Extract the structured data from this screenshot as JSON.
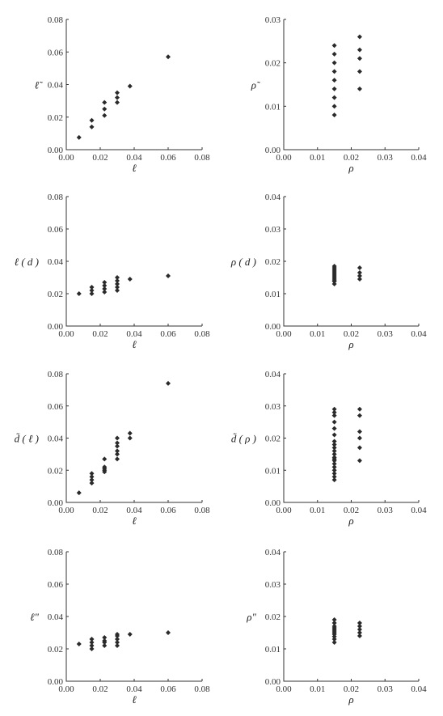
{
  "chart_data": [
    {
      "type": "scatter",
      "ylabel": "ℓ̃",
      "xlabel": "ℓ",
      "xlim": [
        0,
        0.08
      ],
      "ylim": [
        0,
        0.08
      ],
      "xticks": [
        "0.00",
        "0.02",
        "0.04",
        "0.06",
        "0.08"
      ],
      "yticks": [
        "0.00",
        "0.02",
        "0.04",
        "0.06",
        "0.08"
      ],
      "x": [
        0.0075,
        0.015,
        0.015,
        0.0225,
        0.0225,
        0.0225,
        0.03,
        0.03,
        0.03,
        0.0375,
        0.06
      ],
      "y": [
        0.0075,
        0.014,
        0.018,
        0.021,
        0.025,
        0.029,
        0.029,
        0.032,
        0.035,
        0.039,
        0.057
      ]
    },
    {
      "type": "scatter",
      "ylabel": "ρ̃",
      "xlabel": "ρ",
      "xlim": [
        0,
        0.04
      ],
      "ylim": [
        0,
        0.03
      ],
      "xticks": [
        "0.00",
        "0.01",
        "0.02",
        "0.03",
        "0.04"
      ],
      "yticks": [
        "0.00",
        "0.01",
        "0.02",
        "0.03"
      ],
      "x": [
        0.015,
        0.015,
        0.015,
        0.015,
        0.015,
        0.015,
        0.015,
        0.015,
        0.015,
        0.0225,
        0.0225,
        0.0225,
        0.0225,
        0.0225
      ],
      "y": [
        0.008,
        0.01,
        0.012,
        0.014,
        0.016,
        0.018,
        0.02,
        0.022,
        0.024,
        0.014,
        0.018,
        0.021,
        0.023,
        0.026
      ]
    },
    {
      "type": "scatter",
      "ylabel": "ℓ ( d )",
      "xlabel": "ℓ",
      "xlim": [
        0,
        0.08
      ],
      "ylim": [
        0,
        0.08
      ],
      "xticks": [
        "0.00",
        "0.02",
        "0.04",
        "0.06",
        "0.08"
      ],
      "yticks": [
        "0.00",
        "0.02",
        "0.04",
        "0.06",
        "0.08"
      ],
      "x": [
        0.0075,
        0.015,
        0.015,
        0.015,
        0.0225,
        0.0225,
        0.0225,
        0.0225,
        0.03,
        0.03,
        0.03,
        0.03,
        0.03,
        0.0375,
        0.06
      ],
      "y": [
        0.02,
        0.02,
        0.022,
        0.024,
        0.021,
        0.023,
        0.025,
        0.027,
        0.022,
        0.024,
        0.026,
        0.028,
        0.03,
        0.029,
        0.031
      ]
    },
    {
      "type": "scatter",
      "ylabel": "ρ ( d )",
      "xlabel": "ρ",
      "xlim": [
        0,
        0.04
      ],
      "ylim": [
        0,
        0.04
      ],
      "xticks": [
        "0.00",
        "0.01",
        "0.02",
        "0.03",
        "0.04"
      ],
      "yticks": [
        "0.00",
        "0.01",
        "0.02",
        "0.03",
        "0.04"
      ],
      "x": [
        0.015,
        0.015,
        0.015,
        0.015,
        0.015,
        0.015,
        0.015,
        0.015,
        0.015,
        0.015,
        0.015,
        0.015,
        0.0225,
        0.0225,
        0.0225,
        0.0225
      ],
      "y": [
        0.013,
        0.0138,
        0.0145,
        0.015,
        0.0155,
        0.016,
        0.0165,
        0.017,
        0.0175,
        0.018,
        0.0185,
        0.014,
        0.0145,
        0.0155,
        0.0165,
        0.018
      ]
    },
    {
      "type": "scatter",
      "ylabel": "d̃ ( ℓ )",
      "xlabel": "ℓ",
      "xlim": [
        0,
        0.08
      ],
      "ylim": [
        0,
        0.08
      ],
      "xticks": [
        "0.00",
        "0.02",
        "0.04",
        "0.06",
        "0.08"
      ],
      "yticks": [
        "0.00",
        "0.02",
        "0.04",
        "0.06",
        "0.08"
      ],
      "x": [
        0.0075,
        0.015,
        0.015,
        0.015,
        0.015,
        0.0225,
        0.0225,
        0.0225,
        0.0225,
        0.0225,
        0.03,
        0.03,
        0.03,
        0.03,
        0.03,
        0.03,
        0.0375,
        0.0375,
        0.06
      ],
      "y": [
        0.006,
        0.012,
        0.014,
        0.016,
        0.018,
        0.019,
        0.02,
        0.021,
        0.022,
        0.027,
        0.027,
        0.03,
        0.032,
        0.035,
        0.037,
        0.04,
        0.04,
        0.043,
        0.074
      ]
    },
    {
      "type": "scatter",
      "ylabel": "d̃ ( ρ )",
      "xlabel": "ρ",
      "xlim": [
        0,
        0.04
      ],
      "ylim": [
        0,
        0.04
      ],
      "xticks": [
        "0.00",
        "0.01",
        "0.02",
        "0.03",
        "0.04"
      ],
      "yticks": [
        "0.00",
        "0.01",
        "0.02",
        "0.03",
        "0.04"
      ],
      "x": [
        0.015,
        0.015,
        0.015,
        0.015,
        0.015,
        0.015,
        0.015,
        0.015,
        0.015,
        0.015,
        0.015,
        0.015,
        0.015,
        0.015,
        0.015,
        0.015,
        0.015,
        0.015,
        0.015,
        0.015,
        0.0225,
        0.0225,
        0.0225,
        0.0225,
        0.0225,
        0.0225
      ],
      "y": [
        0.007,
        0.008,
        0.009,
        0.01,
        0.011,
        0.012,
        0.013,
        0.014,
        0.015,
        0.016,
        0.017,
        0.018,
        0.019,
        0.021,
        0.023,
        0.025,
        0.027,
        0.028,
        0.029,
        0.0135,
        0.013,
        0.017,
        0.02,
        0.022,
        0.027,
        0.029
      ]
    },
    {
      "type": "scatter",
      "ylabel": "ℓ\"",
      "xlabel": "ℓ",
      "xlim": [
        0,
        0.08
      ],
      "ylim": [
        0,
        0.08
      ],
      "xticks": [
        "0.00",
        "0.02",
        "0.04",
        "0.06",
        "0.08"
      ],
      "yticks": [
        "0.00",
        "0.02",
        "0.04",
        "0.06",
        "0.08"
      ],
      "x": [
        0.0075,
        0.015,
        0.015,
        0.015,
        0.015,
        0.0225,
        0.0225,
        0.0225,
        0.0225,
        0.03,
        0.03,
        0.03,
        0.03,
        0.03,
        0.0375,
        0.06
      ],
      "y": [
        0.023,
        0.02,
        0.022,
        0.024,
        0.026,
        0.022,
        0.024,
        0.025,
        0.027,
        0.022,
        0.024,
        0.026,
        0.028,
        0.029,
        0.029,
        0.03
      ]
    },
    {
      "type": "scatter",
      "ylabel": "ρ\"",
      "xlabel": "ρ",
      "xlim": [
        0,
        0.04
      ],
      "ylim": [
        0,
        0.04
      ],
      "xticks": [
        "0.00",
        "0.01",
        "0.02",
        "0.03",
        "0.04"
      ],
      "yticks": [
        "0.00",
        "0.01",
        "0.02",
        "0.03",
        "0.04"
      ],
      "x": [
        0.015,
        0.015,
        0.015,
        0.015,
        0.015,
        0.015,
        0.015,
        0.015,
        0.015,
        0.015,
        0.015,
        0.0225,
        0.0225,
        0.0225,
        0.0225,
        0.0225
      ],
      "y": [
        0.012,
        0.013,
        0.0138,
        0.0145,
        0.015,
        0.0155,
        0.016,
        0.0165,
        0.017,
        0.018,
        0.019,
        0.014,
        0.015,
        0.016,
        0.017,
        0.018
      ]
    }
  ]
}
